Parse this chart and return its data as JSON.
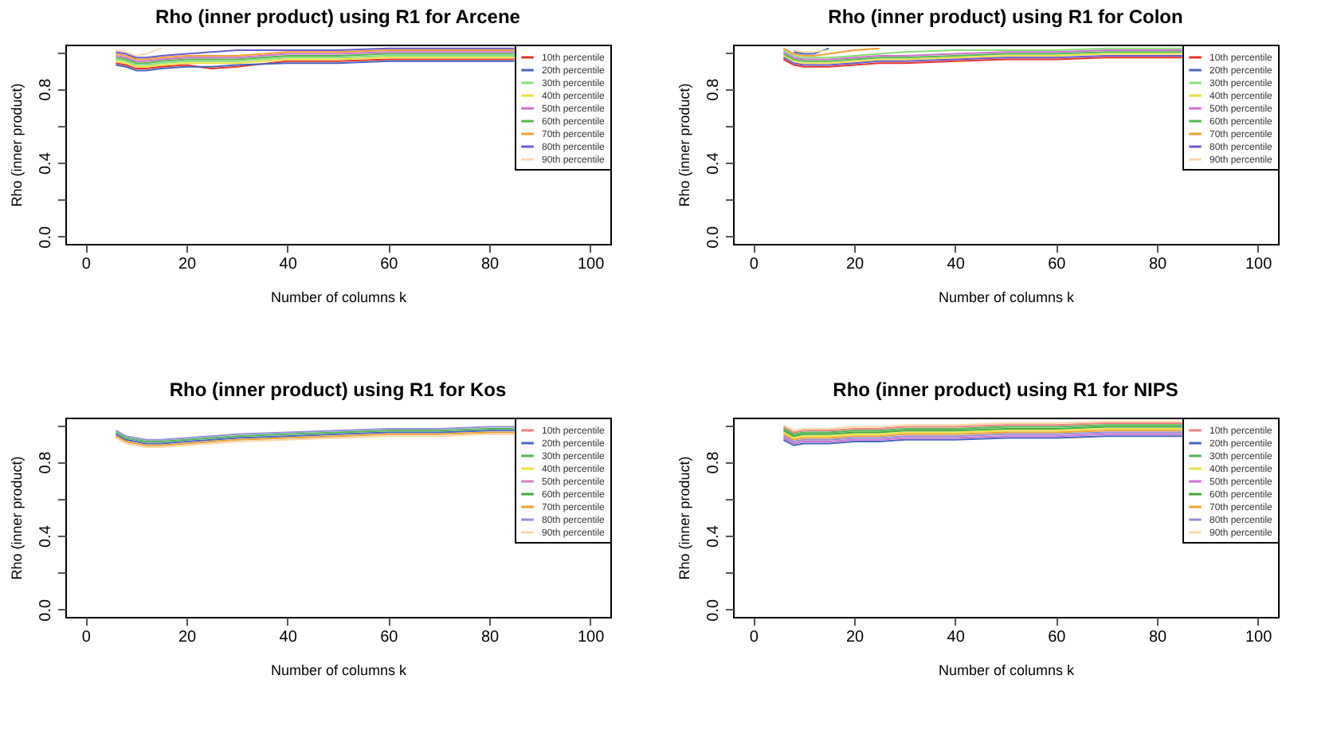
{
  "chart_data": [
    {
      "type": "line",
      "title": "Rho (inner product) using R1 for Arcene",
      "xlabel": "Number of columns k",
      "ylabel": "Rho (inner product)",
      "legend": "top right",
      "marker": "none",
      "line_style": "solid",
      "xlim": [
        -4,
        104
      ],
      "ylim": [
        -0.04,
        1.04
      ],
      "xticks": [
        0,
        20,
        40,
        60,
        80,
        100
      ],
      "yticks": [
        {
          "value": 0,
          "label": "0.0"
        },
        {
          "value": 0.2,
          "label": null
        },
        {
          "value": 0.4,
          "label": "0.4"
        },
        {
          "value": 0.6,
          "label": null
        },
        {
          "value": 0.8,
          "label": "0.8"
        },
        {
          "value": 1,
          "label": null
        }
      ],
      "x": [
        6,
        8,
        10,
        12,
        15,
        20,
        25,
        30,
        40,
        50,
        60,
        70,
        80,
        85
      ],
      "series": [
        {
          "name": "10th percentile",
          "color": "#e8332a",
          "values": [
            0.94,
            0.93,
            0.91,
            0.91,
            0.92,
            0.93,
            0.91,
            0.92,
            0.95,
            0.95,
            0.96,
            0.96,
            0.96,
            0.96
          ]
        },
        {
          "name": "20th percentile",
          "color": "#4466c0",
          "values": [
            0.93,
            0.92,
            0.9,
            0.9,
            0.91,
            0.92,
            0.92,
            0.93,
            0.94,
            0.94,
            0.95,
            0.95,
            0.95,
            0.95
          ]
        },
        {
          "name": "30th percentile",
          "color": "#88e078",
          "values": [
            0.96,
            0.95,
            0.93,
            0.93,
            0.94,
            0.95,
            0.95,
            0.95,
            0.97,
            0.97,
            0.98,
            0.98,
            0.98,
            0.98
          ]
        },
        {
          "name": "40th percentile",
          "color": "#e8e040",
          "values": [
            0.95,
            0.94,
            0.92,
            0.92,
            0.93,
            0.94,
            0.94,
            0.94,
            0.96,
            0.96,
            0.97,
            0.97,
            0.97,
            0.97
          ]
        },
        {
          "name": "50th percentile",
          "color": "#d070d0",
          "values": [
            0.98,
            0.97,
            0.95,
            0.95,
            0.96,
            0.97,
            0.97,
            0.97,
            0.99,
            0.99,
            1.0,
            1.0,
            1.0,
            1.0
          ]
        },
        {
          "name": "60th percentile",
          "color": "#50b850",
          "values": [
            0.97,
            0.96,
            0.94,
            0.94,
            0.95,
            0.96,
            0.96,
            0.96,
            0.98,
            0.98,
            0.99,
            0.99,
            0.99,
            0.99
          ]
        },
        {
          "name": "70th percentile",
          "color": "#f0a030",
          "values": [
            0.99,
            0.98,
            0.96,
            0.96,
            0.97,
            0.98,
            0.98,
            0.98,
            1.0,
            1.0,
            1.01,
            1.01,
            1.01,
            1.01
          ]
        },
        {
          "name": "80th percentile",
          "color": "#6a5acd",
          "values": [
            1.0,
            0.99,
            0.97,
            0.97,
            0.98,
            0.99,
            1.0,
            1.01,
            1.01,
            1.01,
            1.02,
            1.02,
            1.02,
            1.02
          ]
        },
        {
          "name": "90th percentile",
          "color": "#f8d8a8",
          "values": [
            1.01,
            1.0,
            0.98,
            0.99,
            1.02,
            null,
            null,
            null,
            null,
            null,
            null,
            null,
            null,
            null
          ]
        }
      ]
    },
    {
      "type": "line",
      "title": "Rho (inner product) using R1 for Colon",
      "xlabel": "Number of columns k",
      "ylabel": "Rho (inner product)",
      "legend": "top right",
      "marker": "none",
      "line_style": "solid",
      "xlim": [
        -4,
        104
      ],
      "ylim": [
        -0.04,
        1.04
      ],
      "xticks": [
        0,
        20,
        40,
        60,
        80,
        100
      ],
      "yticks": [
        {
          "value": 0,
          "label": "0.0"
        },
        {
          "value": 0.2,
          "label": null
        },
        {
          "value": 0.4,
          "label": "0.4"
        },
        {
          "value": 0.6,
          "label": null
        },
        {
          "value": 0.8,
          "label": "0.8"
        },
        {
          "value": 1,
          "label": null
        }
      ],
      "x": [
        6,
        8,
        10,
        12,
        15,
        20,
        25,
        30,
        40,
        50,
        60,
        70,
        80,
        85
      ],
      "series": [
        {
          "name": "10th percentile",
          "color": "#e8332a",
          "values": [
            0.96,
            0.93,
            0.92,
            0.92,
            0.92,
            0.93,
            0.94,
            0.94,
            0.95,
            0.96,
            0.96,
            0.97,
            0.97,
            0.97
          ]
        },
        {
          "name": "20th percentile",
          "color": "#4466c0",
          "values": [
            null,
            1.0,
            0.99,
            0.99,
            1.02,
            null,
            null,
            null,
            null,
            null,
            null,
            null,
            null,
            null
          ]
        },
        {
          "name": "30th percentile",
          "color": "#88e078",
          "values": [
            1.01,
            0.98,
            0.97,
            0.97,
            0.97,
            0.98,
            0.99,
            1.0,
            1.01,
            1.01,
            1.01,
            1.02,
            1.02,
            1.02
          ]
        },
        {
          "name": "40th percentile",
          "color": "#e8e040",
          "values": [
            0.98,
            0.95,
            0.94,
            0.94,
            0.94,
            0.95,
            0.96,
            0.96,
            0.97,
            0.98,
            0.98,
            0.99,
            0.99,
            0.99
          ]
        },
        {
          "name": "50th percentile",
          "color": "#d070d0",
          "values": [
            1.0,
            0.97,
            0.96,
            0.96,
            0.96,
            0.97,
            0.98,
            0.98,
            0.99,
            1.0,
            1.0,
            1.01,
            1.01,
            1.01
          ]
        },
        {
          "name": "60th percentile",
          "color": "#50b850",
          "values": [
            0.99,
            0.96,
            0.95,
            0.95,
            0.95,
            0.96,
            0.97,
            0.97,
            0.98,
            0.99,
            0.99,
            1.0,
            1.0,
            1.0
          ]
        },
        {
          "name": "70th percentile",
          "color": "#f0a030",
          "values": [
            1.02,
            0.99,
            0.98,
            0.98,
            0.99,
            1.01,
            1.02,
            null,
            null,
            null,
            null,
            null,
            null,
            null
          ]
        },
        {
          "name": "80th percentile",
          "color": "#6a5acd",
          "values": [
            0.97,
            0.94,
            0.93,
            0.93,
            0.93,
            0.94,
            0.95,
            0.95,
            0.96,
            0.97,
            0.97,
            0.98,
            0.98,
            0.98
          ]
        },
        {
          "name": "90th percentile",
          "color": "#f8d8a8",
          "values": [
            null,
            1.01,
            1.0,
            1.0,
            1.01,
            null,
            null,
            null,
            null,
            null,
            null,
            null,
            null,
            null
          ]
        }
      ]
    },
    {
      "type": "line",
      "title": "Rho (inner product) using R1 for Kos",
      "xlabel": "Number of columns k",
      "ylabel": "Rho (inner product)",
      "legend": "top right",
      "marker": "none",
      "line_style": "solid",
      "xlim": [
        -4,
        104
      ],
      "ylim": [
        -0.04,
        1.04
      ],
      "xticks": [
        0,
        20,
        40,
        60,
        80,
        100
      ],
      "yticks": [
        {
          "value": 0,
          "label": "0.0"
        },
        {
          "value": 0.2,
          "label": null
        },
        {
          "value": 0.4,
          "label": "0.4"
        },
        {
          "value": 0.6,
          "label": null
        },
        {
          "value": 0.8,
          "label": "0.8"
        },
        {
          "value": 1,
          "label": null
        }
      ],
      "x": [
        6,
        8,
        10,
        12,
        15,
        20,
        25,
        30,
        40,
        50,
        60,
        70,
        80,
        85
      ],
      "series": [
        {
          "name": "10th percentile",
          "color": "#f08080",
          "values": [
            null,
            null,
            null,
            null,
            null,
            null,
            null,
            null,
            null,
            null,
            null,
            null,
            null,
            null
          ]
        },
        {
          "name": "20th percentile",
          "color": "#4466c0",
          "values": [
            0.95,
            0.92,
            0.91,
            0.9,
            0.9,
            0.91,
            0.92,
            0.93,
            0.94,
            0.95,
            0.96,
            0.96,
            0.97,
            0.97
          ]
        },
        {
          "name": "30th percentile",
          "color": "#50b850",
          "values": [
            0.96,
            0.93,
            0.92,
            0.91,
            0.91,
            0.92,
            0.93,
            0.94,
            0.95,
            0.96,
            0.97,
            0.97,
            0.98,
            0.98
          ]
        },
        {
          "name": "40th percentile",
          "color": "#e8e040",
          "values": [
            null,
            null,
            null,
            null,
            null,
            null,
            null,
            null,
            null,
            null,
            null,
            null,
            null,
            null
          ]
        },
        {
          "name": "50th percentile",
          "color": "#d080d0",
          "values": [
            null,
            null,
            null,
            null,
            null,
            null,
            null,
            null,
            null,
            null,
            null,
            null,
            null,
            null
          ]
        },
        {
          "name": "60th percentile",
          "color": "#40a840",
          "values": [
            null,
            null,
            null,
            null,
            null,
            null,
            null,
            null,
            null,
            null,
            null,
            null,
            null,
            null
          ]
        },
        {
          "name": "70th percentile",
          "color": "#f0a030",
          "values": [
            0.94,
            0.91,
            0.9,
            0.89,
            0.89,
            0.9,
            0.91,
            0.92,
            0.93,
            0.94,
            0.95,
            0.95,
            0.96,
            0.96
          ]
        },
        {
          "name": "80th percentile",
          "color": "#9090d8",
          "values": [
            0.97,
            0.94,
            0.93,
            0.92,
            0.92,
            0.93,
            0.94,
            0.95,
            0.96,
            0.97,
            0.98,
            0.98,
            0.99,
            0.99
          ]
        },
        {
          "name": "90th percentile",
          "color": "#f8d8a8",
          "values": [
            0.93,
            0.9,
            0.89,
            0.88,
            0.88,
            0.89,
            0.9,
            0.91,
            0.92,
            0.93,
            0.94,
            0.94,
            0.95,
            0.95
          ]
        }
      ]
    },
    {
      "type": "line",
      "title": "Rho (inner product) using R1 for NIPS",
      "xlabel": "Number of columns k",
      "ylabel": "Rho (inner product)",
      "legend": "top right",
      "marker": "none",
      "line_style": "solid",
      "xlim": [
        -4,
        104
      ],
      "ylim": [
        -0.04,
        1.04
      ],
      "xticks": [
        0,
        20,
        40,
        60,
        80,
        100
      ],
      "yticks": [
        {
          "value": 0,
          "label": "0.0"
        },
        {
          "value": 0.2,
          "label": null
        },
        {
          "value": 0.4,
          "label": "0.4"
        },
        {
          "value": 0.6,
          "label": null
        },
        {
          "value": 0.8,
          "label": "0.8"
        },
        {
          "value": 1,
          "label": null
        }
      ],
      "x": [
        6,
        8,
        10,
        12,
        15,
        20,
        25,
        30,
        40,
        50,
        60,
        70,
        80,
        85
      ],
      "series": [
        {
          "name": "10th percentile",
          "color": "#f08080",
          "values": [
            0.99,
            0.96,
            0.97,
            0.97,
            0.97,
            0.98,
            0.98,
            0.99,
            0.99,
            1.0,
            1.0,
            1.01,
            1.01,
            1.01
          ]
        },
        {
          "name": "20th percentile",
          "color": "#4466c0",
          "values": [
            0.92,
            0.89,
            0.9,
            0.9,
            0.9,
            0.91,
            0.91,
            0.92,
            0.92,
            0.93,
            0.93,
            0.94,
            0.94,
            0.94
          ]
        },
        {
          "name": "30th percentile",
          "color": "#50b850",
          "values": [
            0.98,
            0.95,
            0.96,
            0.96,
            0.96,
            0.97,
            0.97,
            0.98,
            0.98,
            0.99,
            0.99,
            1.0,
            1.0,
            1.0
          ]
        },
        {
          "name": "40th percentile",
          "color": "#e8e040",
          "values": [
            0.96,
            0.93,
            0.94,
            0.94,
            0.94,
            0.95,
            0.95,
            0.96,
            0.96,
            0.97,
            0.97,
            0.98,
            0.98,
            0.98
          ]
        },
        {
          "name": "50th percentile",
          "color": "#d070d0",
          "values": [
            0.93,
            0.9,
            0.91,
            0.91,
            0.91,
            0.92,
            0.92,
            0.93,
            0.93,
            0.94,
            0.94,
            0.95,
            0.95,
            0.95
          ]
        },
        {
          "name": "60th percentile",
          "color": "#40a840",
          "values": [
            0.97,
            0.94,
            0.95,
            0.95,
            0.95,
            0.96,
            0.96,
            0.97,
            0.97,
            0.98,
            0.98,
            0.99,
            0.99,
            0.99
          ]
        },
        {
          "name": "70th percentile",
          "color": "#f0a030",
          "values": [
            0.95,
            0.92,
            0.93,
            0.93,
            0.93,
            0.94,
            0.94,
            0.95,
            0.95,
            0.96,
            0.96,
            0.97,
            0.97,
            0.97
          ]
        },
        {
          "name": "80th percentile",
          "color": "#9090d8",
          "values": [
            0.94,
            0.91,
            0.92,
            0.92,
            0.92,
            0.93,
            0.93,
            0.94,
            0.94,
            0.95,
            0.95,
            0.96,
            0.96,
            0.96
          ]
        },
        {
          "name": "90th percentile",
          "color": "#f8d8a8",
          "values": [
            1.0,
            0.97,
            0.98,
            0.98,
            0.98,
            0.99,
            0.99,
            1.0,
            1.0,
            1.01,
            1.01,
            1.02,
            1.02,
            1.02
          ]
        }
      ]
    }
  ]
}
